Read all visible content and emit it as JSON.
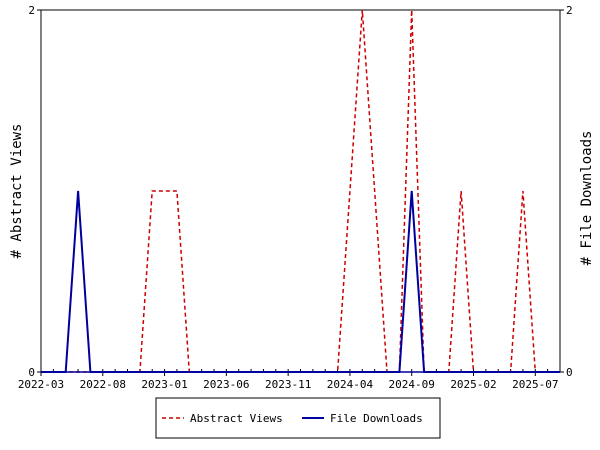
{
  "chart_data": {
    "type": "line",
    "x_tick_labels": [
      "2022-03",
      "2022-08",
      "2023-01",
      "2023-06",
      "2023-11",
      "2024-04",
      "2024-09",
      "2025-02",
      "2025-07"
    ],
    "x_start": "2022-03",
    "x_end": "2025-09",
    "y_left_label": "# Abstract Views",
    "y_right_label": "# File Downloads",
    "y_left_ticks": [
      "0",
      "2"
    ],
    "y_right_ticks": [
      "0",
      "2"
    ],
    "ylim": [
      0,
      2
    ],
    "legend_position": "bottom",
    "series": [
      {
        "name": "Abstract Views",
        "color": "#cc0000",
        "style": "dashed",
        "axis": "left",
        "values": [
          0,
          0,
          0,
          0,
          0,
          0,
          0,
          0,
          0,
          0,
          0,
          0,
          0,
          0,
          0,
          1,
          1,
          1,
          0,
          0,
          0,
          0,
          0,
          0,
          0,
          0,
          0,
          0,
          0,
          0,
          0,
          0,
          0,
          0,
          0,
          0,
          0,
          0,
          0,
          0,
          0,
          0,
          0,
          0,
          0,
          0,
          0,
          0,
          0,
          0,
          0,
          0,
          0,
          0,
          0,
          0,
          0,
          0,
          0,
          0,
          0,
          0,
          0,
          0,
          0,
          0,
          0,
          0,
          0,
          0,
          0,
          0,
          0,
          0,
          0,
          0,
          0,
          0,
          0,
          0,
          0,
          0,
          0,
          0,
          0,
          0,
          0,
          0,
          0,
          0,
          0,
          0,
          0,
          0,
          0,
          0,
          0,
          0,
          0,
          0,
          0,
          0,
          0,
          0,
          0,
          0,
          0,
          0,
          0,
          0,
          0,
          0,
          0,
          0,
          0,
          0,
          0,
          0,
          0,
          0,
          0,
          0,
          0,
          0,
          0,
          0,
          0,
          0,
          0,
          0,
          0,
          0,
          0,
          0,
          0,
          0,
          0,
          0,
          0,
          0,
          0,
          0,
          0,
          0,
          0,
          0,
          0,
          0,
          0,
          0,
          0,
          0,
          0,
          0,
          0,
          0,
          0,
          0,
          0,
          0,
          0,
          0,
          0,
          0,
          0,
          0,
          0,
          0,
          0,
          0,
          0,
          0,
          0,
          0,
          0,
          0,
          0,
          0,
          0,
          0,
          0,
          0,
          0,
          0,
          0,
          0,
          0,
          0,
          0,
          0,
          0,
          0,
          0,
          0,
          0,
          0,
          0,
          0,
          0,
          0,
          0
        ]
      }
    ],
    "points": {
      "abstract_views": [
        [
          "2022-03",
          0
        ],
        [
          "2022-11",
          0
        ],
        [
          "2022-12",
          1
        ],
        [
          "2023-01",
          1
        ],
        [
          "2023-02",
          1
        ],
        [
          "2023-03",
          0
        ],
        [
          "2024-03",
          0
        ],
        [
          "2024-05",
          2
        ],
        [
          "2024-07",
          0
        ],
        [
          "2024-08",
          0
        ],
        [
          "2024-09",
          2
        ],
        [
          "2024-10",
          0
        ],
        [
          "2024-12",
          0
        ],
        [
          "2025-01",
          1
        ],
        [
          "2025-02",
          0
        ],
        [
          "2025-05",
          0
        ],
        [
          "2025-06",
          1
        ],
        [
          "2025-07",
          0
        ],
        [
          "2025-09",
          0
        ]
      ],
      "file_downloads": [
        [
          "2022-03",
          0
        ],
        [
          "2022-05",
          0
        ],
        [
          "2022-06",
          1
        ],
        [
          "2022-07",
          0
        ],
        [
          "2024-08",
          0
        ],
        [
          "2024-09",
          1
        ],
        [
          "2024-10",
          0
        ],
        [
          "2025-09",
          0
        ]
      ]
    }
  },
  "legend": {
    "abstract_views": "Abstract Views",
    "file_downloads": "File Downloads"
  }
}
